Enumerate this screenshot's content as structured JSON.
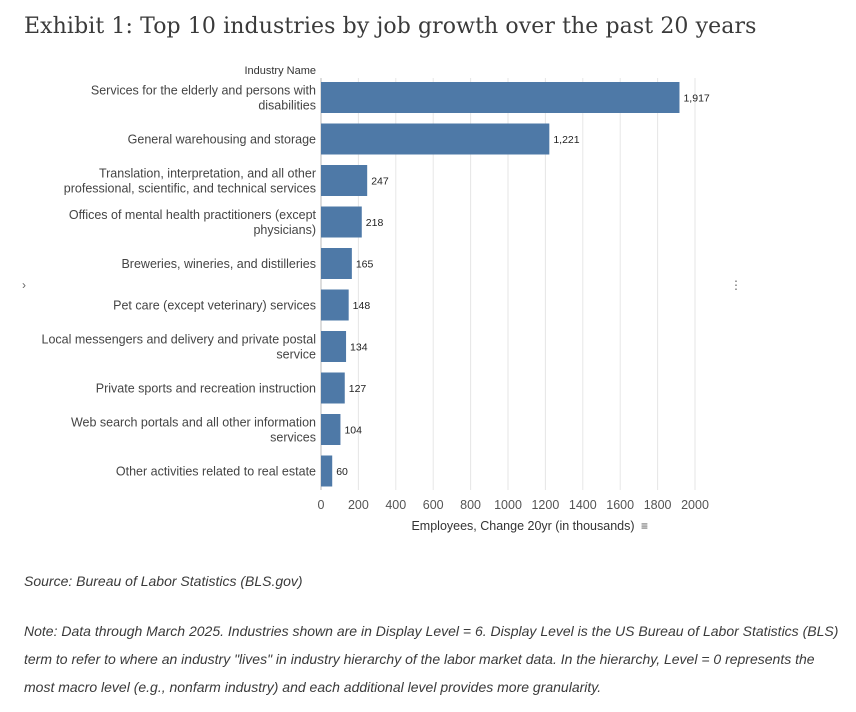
{
  "exhibit_title": "Exhibit 1: Top 10 industries by job growth over the past 20 years",
  "source": "Source: Bureau of Labor Statistics (BLS.gov)",
  "note": "Note: Data through March 2025. Industries shown are in Display Level = 6. Display Level is the US Bureau of Labor Statistics (BLS) term to refer to where an industry \"lives\" in industry hierarchy of the labor market data. In the hierarchy, Level = 0 represents the most macro level (e.g., nonfarm industry) and each additional level provides more granularity.",
  "side_marks": {
    "left": "›",
    "right": "⋮"
  },
  "colors": {
    "bar": "#4e79a7",
    "grid": "#e6e6e6",
    "text": "#333333"
  },
  "chart_data": {
    "type": "bar",
    "orientation": "horizontal",
    "title": "Exhibit 1: Top 10 industries by job growth over the past 20 years",
    "category_header": "Industry Name",
    "xlabel": "Employees, Change 20yr (in thousands)",
    "xlabel_sort_icon": "≡",
    "xlim": [
      0,
      2000
    ],
    "xticks": [
      "0",
      "200",
      "400",
      "600",
      "800",
      "1000",
      "1200",
      "1400",
      "1600",
      "1800",
      "2000"
    ],
    "grid": true,
    "categories": [
      [
        "Services for the elderly and persons with",
        "disabilities"
      ],
      [
        "General warehousing and storage"
      ],
      [
        "Translation, interpretation, and all other",
        "professional, scientific, and technical services"
      ],
      [
        "Offices of mental health practitioners (except",
        "physicians)"
      ],
      [
        "Breweries, wineries, and distilleries"
      ],
      [
        "Pet care (except veterinary) services"
      ],
      [
        "Local messengers and delivery and private postal",
        "service"
      ],
      [
        "Private sports and recreation instruction"
      ],
      [
        "Web search portals and all other information",
        "services"
      ],
      [
        "Other activities related to real estate"
      ]
    ],
    "values": [
      1917,
      1221,
      247,
      218,
      165,
      148,
      134,
      127,
      104,
      60
    ],
    "value_labels": [
      "1,917",
      "1,221",
      "247",
      "218",
      "165",
      "148",
      "134",
      "127",
      "104",
      "60"
    ]
  }
}
